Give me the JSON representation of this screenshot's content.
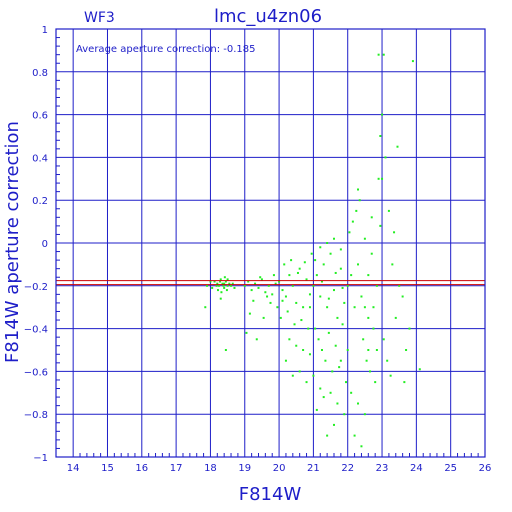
{
  "chart_data": {
    "type": "scatter",
    "title": "lmc_u4zn06",
    "corner_label": "WF3",
    "annotation": "Average aperture correction: -0.185",
    "xlabel": "F814W",
    "ylabel": "F814W aperture correction",
    "xlim": [
      13.5,
      26
    ],
    "ylim": [
      -1,
      1
    ],
    "x_ticks": [
      "14",
      "15",
      "16",
      "17",
      "18",
      "19",
      "20",
      "21",
      "22",
      "23",
      "24",
      "25",
      "26"
    ],
    "y_ticks": [
      "1",
      "0.8",
      "0.6",
      "0.4",
      "0.2",
      "0",
      "−0.2",
      "−0.4",
      "−0.6",
      "−0.8",
      "−1"
    ],
    "grid": true,
    "reference_line": -0.185,
    "colors": {
      "axis": "#1e1ec8",
      "points": "#22ee22",
      "reference": "#cc0000"
    },
    "points": [
      [
        18.12,
        -0.18
      ],
      [
        18.2,
        -0.19
      ],
      [
        18.25,
        -0.2
      ],
      [
        18.3,
        -0.17
      ],
      [
        18.35,
        -0.19
      ],
      [
        18.4,
        -0.21
      ],
      [
        18.45,
        -0.18
      ],
      [
        18.5,
        -0.2
      ],
      [
        18.55,
        -0.19
      ],
      [
        18.22,
        -0.22
      ],
      [
        18.32,
        -0.23
      ],
      [
        18.42,
        -0.16
      ],
      [
        18.6,
        -0.2
      ],
      [
        18.28,
        -0.18
      ],
      [
        18.38,
        -0.2
      ],
      [
        18.48,
        -0.22
      ],
      [
        18.18,
        -0.2
      ],
      [
        18.3,
        -0.26
      ],
      [
        18.4,
        -0.19
      ],
      [
        18.5,
        -0.17
      ],
      [
        18.0,
        -0.18
      ],
      [
        17.9,
        -0.2
      ],
      [
        18.05,
        -0.21
      ],
      [
        17.85,
        -0.3
      ],
      [
        18.45,
        -0.5
      ],
      [
        18.65,
        -0.19
      ],
      [
        18.7,
        -0.21
      ],
      [
        19.0,
        -0.2
      ],
      [
        19.1,
        -0.18
      ],
      [
        19.2,
        -0.22
      ],
      [
        19.3,
        -0.19
      ],
      [
        19.4,
        -0.21
      ],
      [
        19.5,
        -0.17
      ],
      [
        19.6,
        -0.23
      ],
      [
        19.7,
        -0.2
      ],
      [
        19.8,
        -0.24
      ],
      [
        19.9,
        -0.19
      ],
      [
        19.25,
        -0.27
      ],
      [
        19.45,
        -0.16
      ],
      [
        19.65,
        -0.25
      ],
      [
        19.85,
        -0.15
      ],
      [
        19.15,
        -0.33
      ],
      [
        19.55,
        -0.35
      ],
      [
        19.75,
        -0.28
      ],
      [
        19.95,
        -0.3
      ],
      [
        19.35,
        -0.45
      ],
      [
        19.05,
        -0.42
      ],
      [
        20.0,
        -0.18
      ],
      [
        20.1,
        -0.22
      ],
      [
        20.2,
        -0.25
      ],
      [
        20.3,
        -0.15
      ],
      [
        20.4,
        -0.2
      ],
      [
        20.5,
        -0.28
      ],
      [
        20.6,
        -0.12
      ],
      [
        20.7,
        -0.3
      ],
      [
        20.8,
        -0.17
      ],
      [
        20.9,
        -0.24
      ],
      [
        20.05,
        -0.35
      ],
      [
        20.25,
        -0.32
      ],
      [
        20.45,
        -0.38
      ],
      [
        20.65,
        -0.36
      ],
      [
        20.85,
        -0.4
      ],
      [
        20.15,
        -0.1
      ],
      [
        20.35,
        -0.08
      ],
      [
        20.55,
        -0.14
      ],
      [
        20.75,
        -0.09
      ],
      [
        20.95,
        -0.05
      ],
      [
        20.3,
        -0.45
      ],
      [
        20.5,
        -0.48
      ],
      [
        20.7,
        -0.5
      ],
      [
        20.9,
        -0.52
      ],
      [
        20.2,
        -0.55
      ],
      [
        20.6,
        -0.6
      ],
      [
        20.8,
        -0.65
      ],
      [
        20.4,
        -0.62
      ],
      [
        20.1,
        -0.27
      ],
      [
        20.9,
        -0.3
      ],
      [
        21.0,
        -0.2
      ],
      [
        21.1,
        -0.15
      ],
      [
        21.2,
        -0.25
      ],
      [
        21.3,
        -0.1
      ],
      [
        21.4,
        -0.3
      ],
      [
        21.5,
        -0.05
      ],
      [
        21.6,
        -0.22
      ],
      [
        21.7,
        -0.35
      ],
      [
        21.8,
        -0.12
      ],
      [
        21.9,
        -0.28
      ],
      [
        21.05,
        -0.4
      ],
      [
        21.15,
        -0.45
      ],
      [
        21.25,
        -0.5
      ],
      [
        21.35,
        -0.55
      ],
      [
        21.45,
        -0.42
      ],
      [
        21.55,
        -0.6
      ],
      [
        21.65,
        -0.48
      ],
      [
        21.75,
        -0.58
      ],
      [
        21.85,
        -0.38
      ],
      [
        21.95,
        -0.65
      ],
      [
        21.2,
        -0.02
      ],
      [
        21.4,
        0.0
      ],
      [
        21.6,
        0.02
      ],
      [
        21.8,
        -0.03
      ],
      [
        21.5,
        -0.7
      ],
      [
        21.3,
        -0.72
      ],
      [
        21.7,
        -0.75
      ],
      [
        21.1,
        -0.78
      ],
      [
        21.0,
        -0.62
      ],
      [
        21.9,
        -0.8
      ],
      [
        21.6,
        -0.85
      ],
      [
        21.4,
        -0.9
      ],
      [
        21.2,
        -0.68
      ],
      [
        21.8,
        -0.55
      ],
      [
        21.05,
        -0.08
      ],
      [
        21.25,
        -0.18
      ],
      [
        21.45,
        -0.26
      ],
      [
        21.65,
        -0.14
      ],
      [
        21.85,
        -0.21
      ],
      [
        22.0,
        -0.2
      ],
      [
        22.1,
        -0.15
      ],
      [
        22.2,
        -0.3
      ],
      [
        22.3,
        -0.1
      ],
      [
        22.4,
        -0.25
      ],
      [
        22.5,
        0.02
      ],
      [
        22.6,
        -0.35
      ],
      [
        22.7,
        -0.05
      ],
      [
        22.05,
        0.05
      ],
      [
        22.15,
        0.1
      ],
      [
        22.25,
        0.15
      ],
      [
        22.35,
        0.2
      ],
      [
        22.45,
        -0.45
      ],
      [
        22.55,
        -0.55
      ],
      [
        22.65,
        -0.6
      ],
      [
        22.75,
        -0.4
      ],
      [
        22.85,
        -0.2
      ],
      [
        22.95,
        0.08
      ],
      [
        22.1,
        -0.7
      ],
      [
        22.3,
        -0.75
      ],
      [
        22.5,
        -0.8
      ],
      [
        22.2,
        -0.9
      ],
      [
        22.4,
        -0.95
      ],
      [
        22.6,
        -0.5
      ],
      [
        22.8,
        -0.65
      ],
      [
        22.0,
        -0.5
      ],
      [
        22.3,
        0.25
      ],
      [
        22.7,
        0.12
      ],
      [
        22.9,
        0.3
      ],
      [
        22.5,
        -0.3
      ],
      [
        23.0,
        0.3
      ],
      [
        23.1,
        0.4
      ],
      [
        23.2,
        0.15
      ],
      [
        23.3,
        -0.1
      ],
      [
        23.0,
        0.6
      ],
      [
        22.9,
        0.88
      ],
      [
        23.05,
        0.88
      ],
      [
        22.95,
        0.5
      ],
      [
        23.4,
        -0.35
      ],
      [
        23.5,
        -0.2
      ],
      [
        23.6,
        -0.25
      ],
      [
        23.7,
        -0.5
      ],
      [
        23.8,
        -0.4
      ],
      [
        23.15,
        -0.55
      ],
      [
        23.25,
        -0.62
      ],
      [
        23.05,
        -0.45
      ],
      [
        22.85,
        -0.5
      ],
      [
        23.35,
        0.05
      ],
      [
        23.45,
        0.45
      ],
      [
        24.1,
        -0.59
      ],
      [
        23.9,
        0.85
      ],
      [
        23.65,
        -0.65
      ],
      [
        22.75,
        -0.3
      ],
      [
        22.6,
        -0.15
      ]
    ]
  }
}
